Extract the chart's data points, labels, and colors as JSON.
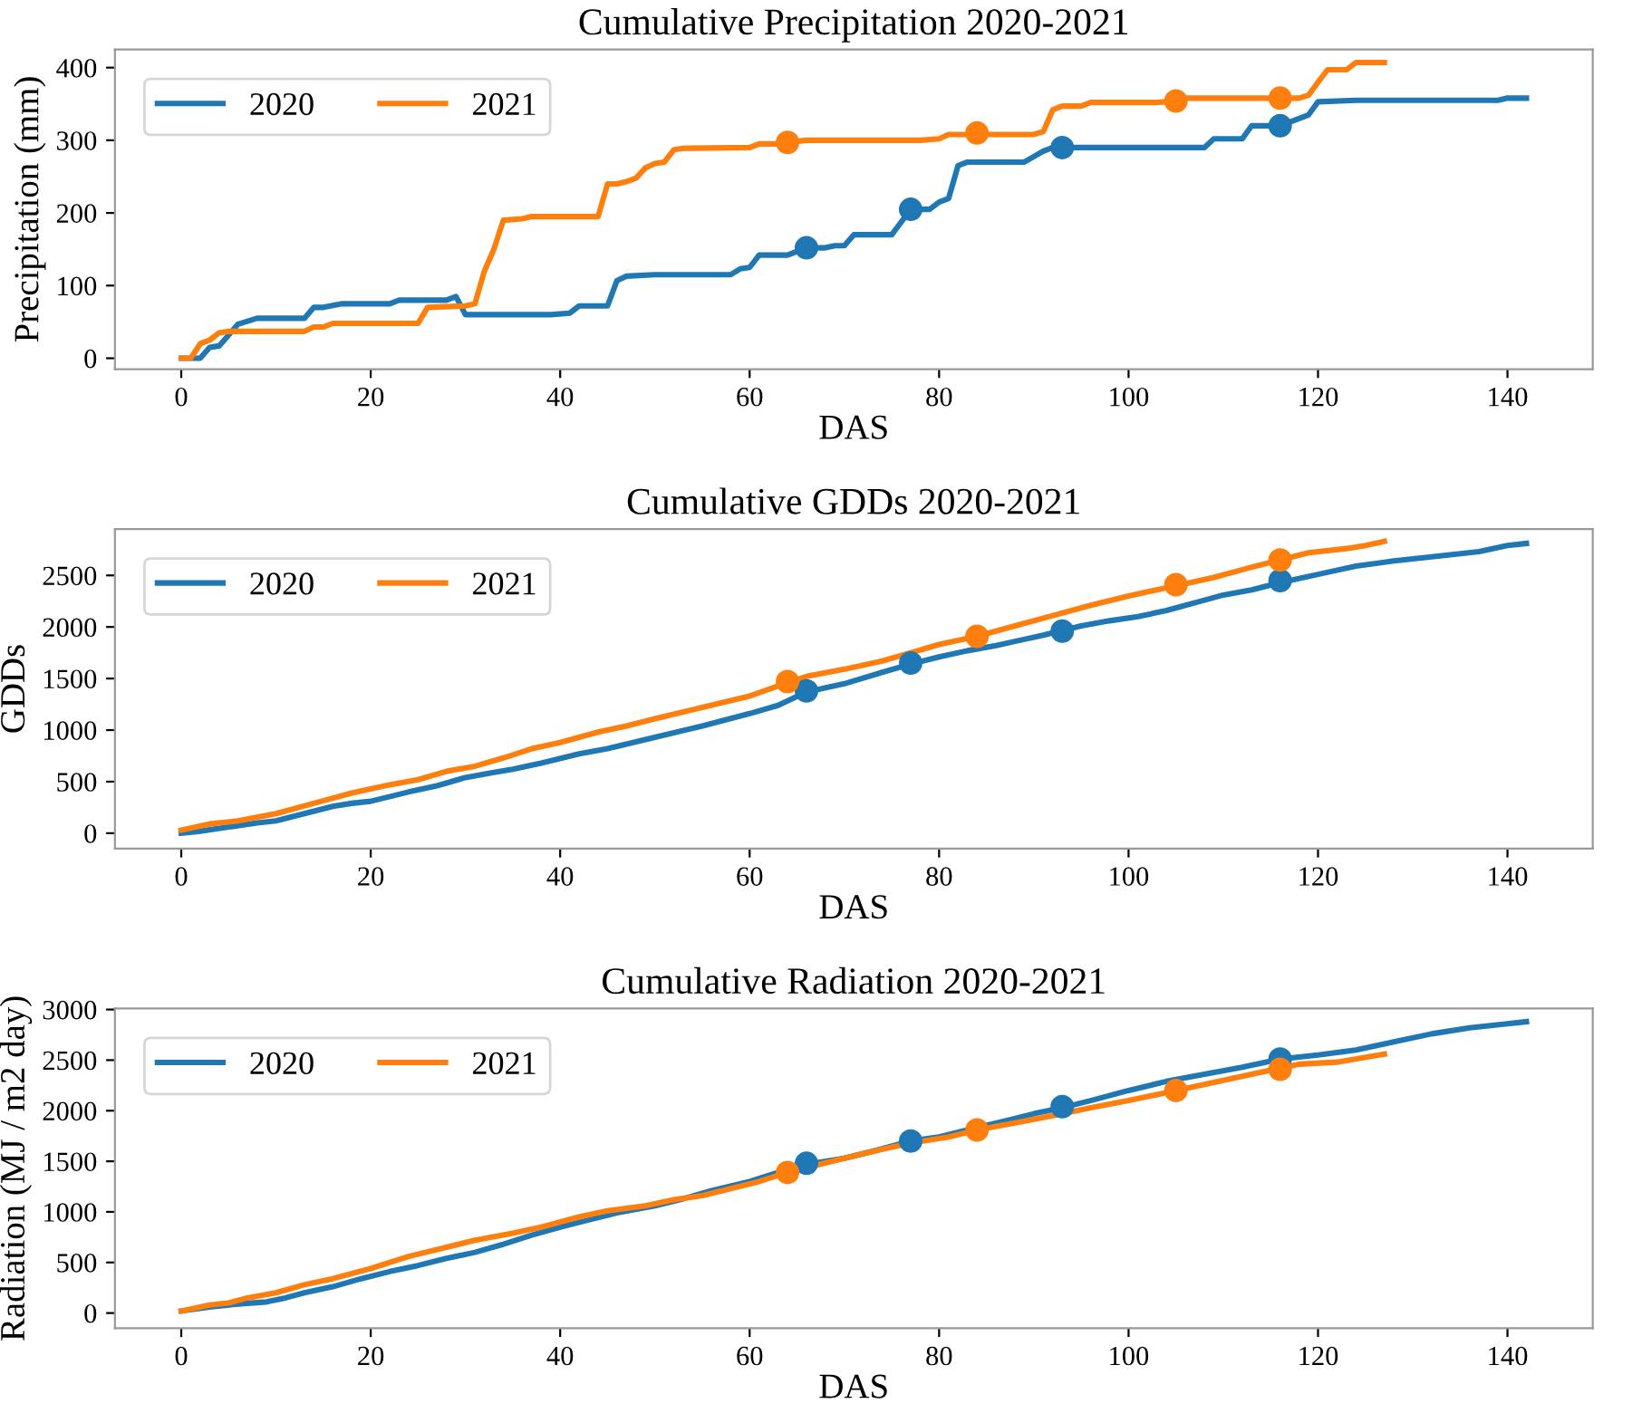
{
  "chart_data": [
    {
      "type": "line",
      "title": "Cumulative Precipitation 2020-2021",
      "xlabel": "DAS",
      "ylabel": "Precipitation (mm)",
      "xlim": [
        -7,
        149
      ],
      "ylim": [
        -15,
        425
      ],
      "xticks": [
        0,
        20,
        40,
        60,
        80,
        100,
        120,
        140
      ],
      "yticks": [
        0,
        100,
        200,
        300,
        400
      ],
      "grid": false,
      "legend": "top left",
      "series": [
        {
          "name": "2020",
          "color": "#1f77b4",
          "x": [
            0,
            2,
            3,
            4,
            6,
            8,
            13,
            14,
            15,
            17,
            22,
            23,
            28,
            29,
            30,
            39,
            41,
            42,
            45,
            46,
            47,
            50,
            58,
            59,
            60,
            61,
            64,
            66,
            68,
            69,
            70,
            71,
            75,
            77,
            79,
            80,
            81,
            82,
            83,
            89,
            91,
            92,
            98,
            108,
            109,
            112,
            113,
            116,
            118,
            119,
            120,
            124,
            139,
            140,
            142
          ],
          "values": [
            0,
            0,
            15,
            17,
            47,
            55,
            55,
            70,
            70,
            75,
            75,
            80,
            80,
            85,
            60,
            60,
            62,
            72,
            72,
            107,
            113,
            115,
            115,
            123,
            125,
            142,
            142,
            152,
            152,
            155,
            155,
            170,
            170,
            205,
            205,
            215,
            220,
            265,
            270,
            270,
            285,
            290,
            290,
            290,
            302,
            302,
            320,
            320,
            330,
            335,
            353,
            355,
            355,
            358,
            358
          ]
        },
        {
          "name": "2021",
          "color": "#ff7f0e",
          "x": [
            0,
            1,
            2,
            3,
            4,
            5,
            13,
            14,
            15,
            16,
            25,
            26,
            30,
            31,
            32,
            33,
            34,
            36,
            37,
            44,
            45,
            46,
            47,
            48,
            49,
            50,
            51,
            52,
            53,
            60,
            61,
            63,
            64,
            66,
            78,
            80,
            81,
            90,
            91,
            92,
            93,
            95,
            96,
            103,
            105,
            106,
            118,
            119,
            120,
            121,
            123,
            124,
            127
          ],
          "values": [
            0,
            0,
            20,
            25,
            35,
            37,
            37,
            43,
            43,
            48,
            48,
            70,
            72,
            75,
            120,
            150,
            190,
            192,
            195,
            195,
            240,
            240,
            243,
            248,
            262,
            268,
            270,
            287,
            289,
            290,
            295,
            295,
            297,
            300,
            300,
            302,
            308,
            308,
            312,
            342,
            347,
            347,
            352,
            352,
            354,
            358,
            358,
            362,
            380,
            397,
            397,
            407,
            407
          ]
        },
        {
          "type": "scatter",
          "marker": "circle",
          "color": "#1f77b4",
          "x": [
            66,
            77,
            93,
            116
          ],
          "values": [
            152,
            205,
            290,
            320
          ]
        },
        {
          "type": "scatter",
          "marker": "circle",
          "color": "#ff7f0e",
          "x": [
            64,
            84,
            105,
            116
          ],
          "values": [
            297,
            310,
            354,
            358
          ]
        }
      ]
    },
    {
      "type": "line",
      "title": "Cumulative GDDs 2020-2021",
      "xlabel": "DAS",
      "ylabel": "GDDs",
      "xlim": [
        -7,
        149
      ],
      "ylim": [
        -150,
        2950
      ],
      "xticks": [
        0,
        20,
        40,
        60,
        80,
        100,
        120,
        140
      ],
      "yticks": [
        0,
        500,
        1000,
        1500,
        2000,
        2500
      ],
      "grid": false,
      "legend": "top left",
      "series": [
        {
          "name": "2020",
          "color": "#1f77b4",
          "x": [
            0,
            2,
            5,
            8,
            10,
            13,
            16,
            18,
            20,
            24,
            27,
            30,
            33,
            35,
            38,
            42,
            45,
            50,
            55,
            60,
            63,
            66,
            70,
            74,
            77,
            80,
            83,
            86,
            88,
            91,
            95,
            98,
            101,
            104,
            108,
            110,
            113,
            116,
            120,
            124,
            128,
            132,
            137,
            140,
            142
          ],
          "values": [
            0,
            20,
            60,
            100,
            120,
            190,
            260,
            290,
            310,
            400,
            460,
            540,
            590,
            620,
            680,
            770,
            820,
            930,
            1040,
            1160,
            1240,
            1370,
            1450,
            1560,
            1640,
            1710,
            1770,
            1820,
            1860,
            1920,
            2010,
            2060,
            2100,
            2160,
            2260,
            2310,
            2360,
            2430,
            2510,
            2590,
            2640,
            2680,
            2730,
            2790,
            2810
          ]
        },
        {
          "name": "2021",
          "color": "#ff7f0e",
          "x": [
            0,
            3,
            6,
            10,
            14,
            18,
            22,
            25,
            28,
            31,
            34,
            37,
            40,
            44,
            47,
            50,
            55,
            60,
            64,
            66,
            70,
            74,
            77,
            80,
            84,
            88,
            92,
            96,
            100,
            105,
            109,
            113,
            116,
            119,
            123,
            125,
            127
          ],
          "values": [
            30,
            90,
            120,
            190,
            290,
            390,
            470,
            520,
            600,
            650,
            730,
            820,
            880,
            980,
            1040,
            1110,
            1220,
            1330,
            1460,
            1520,
            1590,
            1670,
            1750,
            1830,
            1910,
            2010,
            2110,
            2210,
            2300,
            2400,
            2480,
            2580,
            2650,
            2720,
            2760,
            2790,
            2830
          ]
        },
        {
          "type": "scatter",
          "marker": "circle",
          "color": "#1f77b4",
          "x": [
            66,
            77,
            93,
            116
          ],
          "values": [
            1380,
            1650,
            1960,
            2450
          ]
        },
        {
          "type": "scatter",
          "marker": "circle",
          "color": "#ff7f0e",
          "x": [
            64,
            84,
            105,
            116
          ],
          "values": [
            1470,
            1910,
            2410,
            2650
          ]
        }
      ]
    },
    {
      "type": "line",
      "title": "Cumulative Radiation 2020-2021",
      "xlabel": "DAS",
      "ylabel": "Radiation (MJ / m2 day)",
      "xlim": [
        -7,
        149
      ],
      "ylim": [
        -150,
        3010
      ],
      "xticks": [
        0,
        20,
        40,
        60,
        80,
        100,
        120,
        140
      ],
      "yticks": [
        0,
        500,
        1000,
        1500,
        2000,
        2500,
        3000
      ],
      "grid": false,
      "legend": "top left",
      "series": [
        {
          "name": "2020",
          "color": "#1f77b4",
          "x": [
            0,
            3,
            6,
            9,
            11,
            13,
            16,
            19,
            22,
            25,
            28,
            31,
            34,
            37,
            40,
            43,
            46,
            50,
            53,
            56,
            60,
            63,
            66,
            70,
            73,
            77,
            80,
            83,
            87,
            90,
            93,
            96,
            100,
            104,
            108,
            112,
            116,
            120,
            124,
            128,
            132,
            136,
            140,
            142
          ],
          "values": [
            20,
            60,
            90,
            110,
            150,
            200,
            260,
            340,
            410,
            470,
            540,
            600,
            680,
            770,
            850,
            920,
            990,
            1060,
            1130,
            1210,
            1300,
            1390,
            1470,
            1530,
            1600,
            1700,
            1740,
            1810,
            1900,
            1970,
            2030,
            2100,
            2200,
            2290,
            2360,
            2430,
            2510,
            2550,
            2600,
            2680,
            2760,
            2820,
            2860,
            2880
          ]
        },
        {
          "name": "2021",
          "color": "#ff7f0e",
          "x": [
            0,
            3,
            5,
            7,
            10,
            13,
            16,
            20,
            24,
            28,
            31,
            35,
            38,
            42,
            45,
            49,
            52,
            55,
            58,
            61,
            64,
            67,
            70,
            74,
            77,
            81,
            84,
            88,
            92,
            96,
            100,
            103,
            105,
            108,
            112,
            116,
            118,
            122,
            127
          ],
          "values": [
            20,
            80,
            100,
            150,
            200,
            280,
            340,
            440,
            560,
            650,
            720,
            790,
            850,
            950,
            1010,
            1060,
            1120,
            1160,
            1230,
            1300,
            1390,
            1460,
            1530,
            1620,
            1680,
            1740,
            1810,
            1880,
            1950,
            2030,
            2100,
            2160,
            2200,
            2260,
            2340,
            2420,
            2460,
            2480,
            2560
          ]
        },
        {
          "type": "scatter",
          "marker": "circle",
          "color": "#1f77b4",
          "x": [
            66,
            77,
            93,
            116
          ],
          "values": [
            1480,
            1700,
            2040,
            2510
          ]
        },
        {
          "type": "scatter",
          "marker": "circle",
          "color": "#ff7f0e",
          "x": [
            64,
            84,
            105,
            116
          ],
          "values": [
            1390,
            1810,
            2200,
            2410
          ]
        }
      ]
    }
  ]
}
